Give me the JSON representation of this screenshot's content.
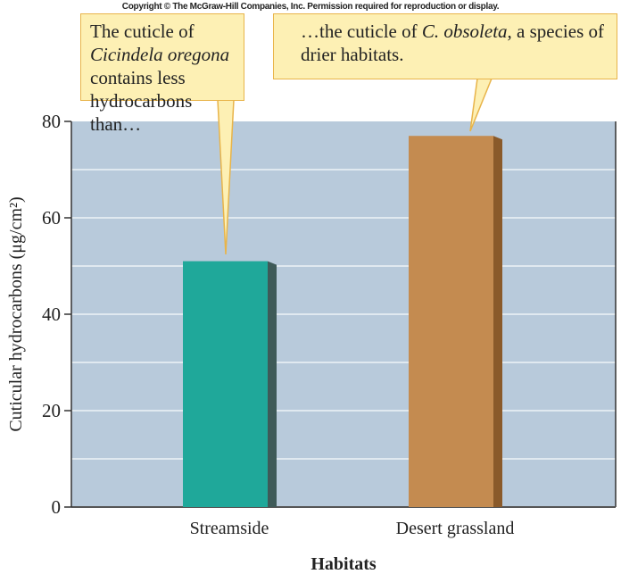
{
  "copyright": "Copyright © The McGraw-Hill Companies, Inc. Permission required for reproduction or display.",
  "callouts": [
    {
      "parts": [
        {
          "t": "The cuticle of ",
          "i": false
        },
        {
          "t": "Cicindela",
          "i": true
        },
        {
          "t": " ",
          "i": false
        },
        {
          "t": "oregona",
          "i": true
        },
        {
          "t": " contains less hydrocarbons than…",
          "i": false
        }
      ]
    },
    {
      "parts": [
        {
          "t": "…the cuticle of ",
          "i": false
        },
        {
          "t": "C. obsoleta",
          "i": true
        },
        {
          "t": ", a species of drier habitats.",
          "i": false
        }
      ]
    }
  ],
  "chart_data": {
    "type": "bar",
    "title": "",
    "categories": [
      "Streamside",
      "Desert grassland"
    ],
    "values": [
      51,
      77
    ],
    "xlabel": "Habitats",
    "ylabel": "Cuticular hydrocarbons (μg/cm²)",
    "ylim": [
      0,
      80
    ],
    "yticks": [
      0,
      20,
      40,
      60,
      80
    ],
    "grid": true,
    "colors": {
      "bars": [
        "#1fa89a",
        "#c48b50"
      ],
      "sides": [
        "#3e5a58",
        "#8a5a2a"
      ],
      "plot_bg": "#b8cadb",
      "grid": "#eef3f8"
    }
  }
}
